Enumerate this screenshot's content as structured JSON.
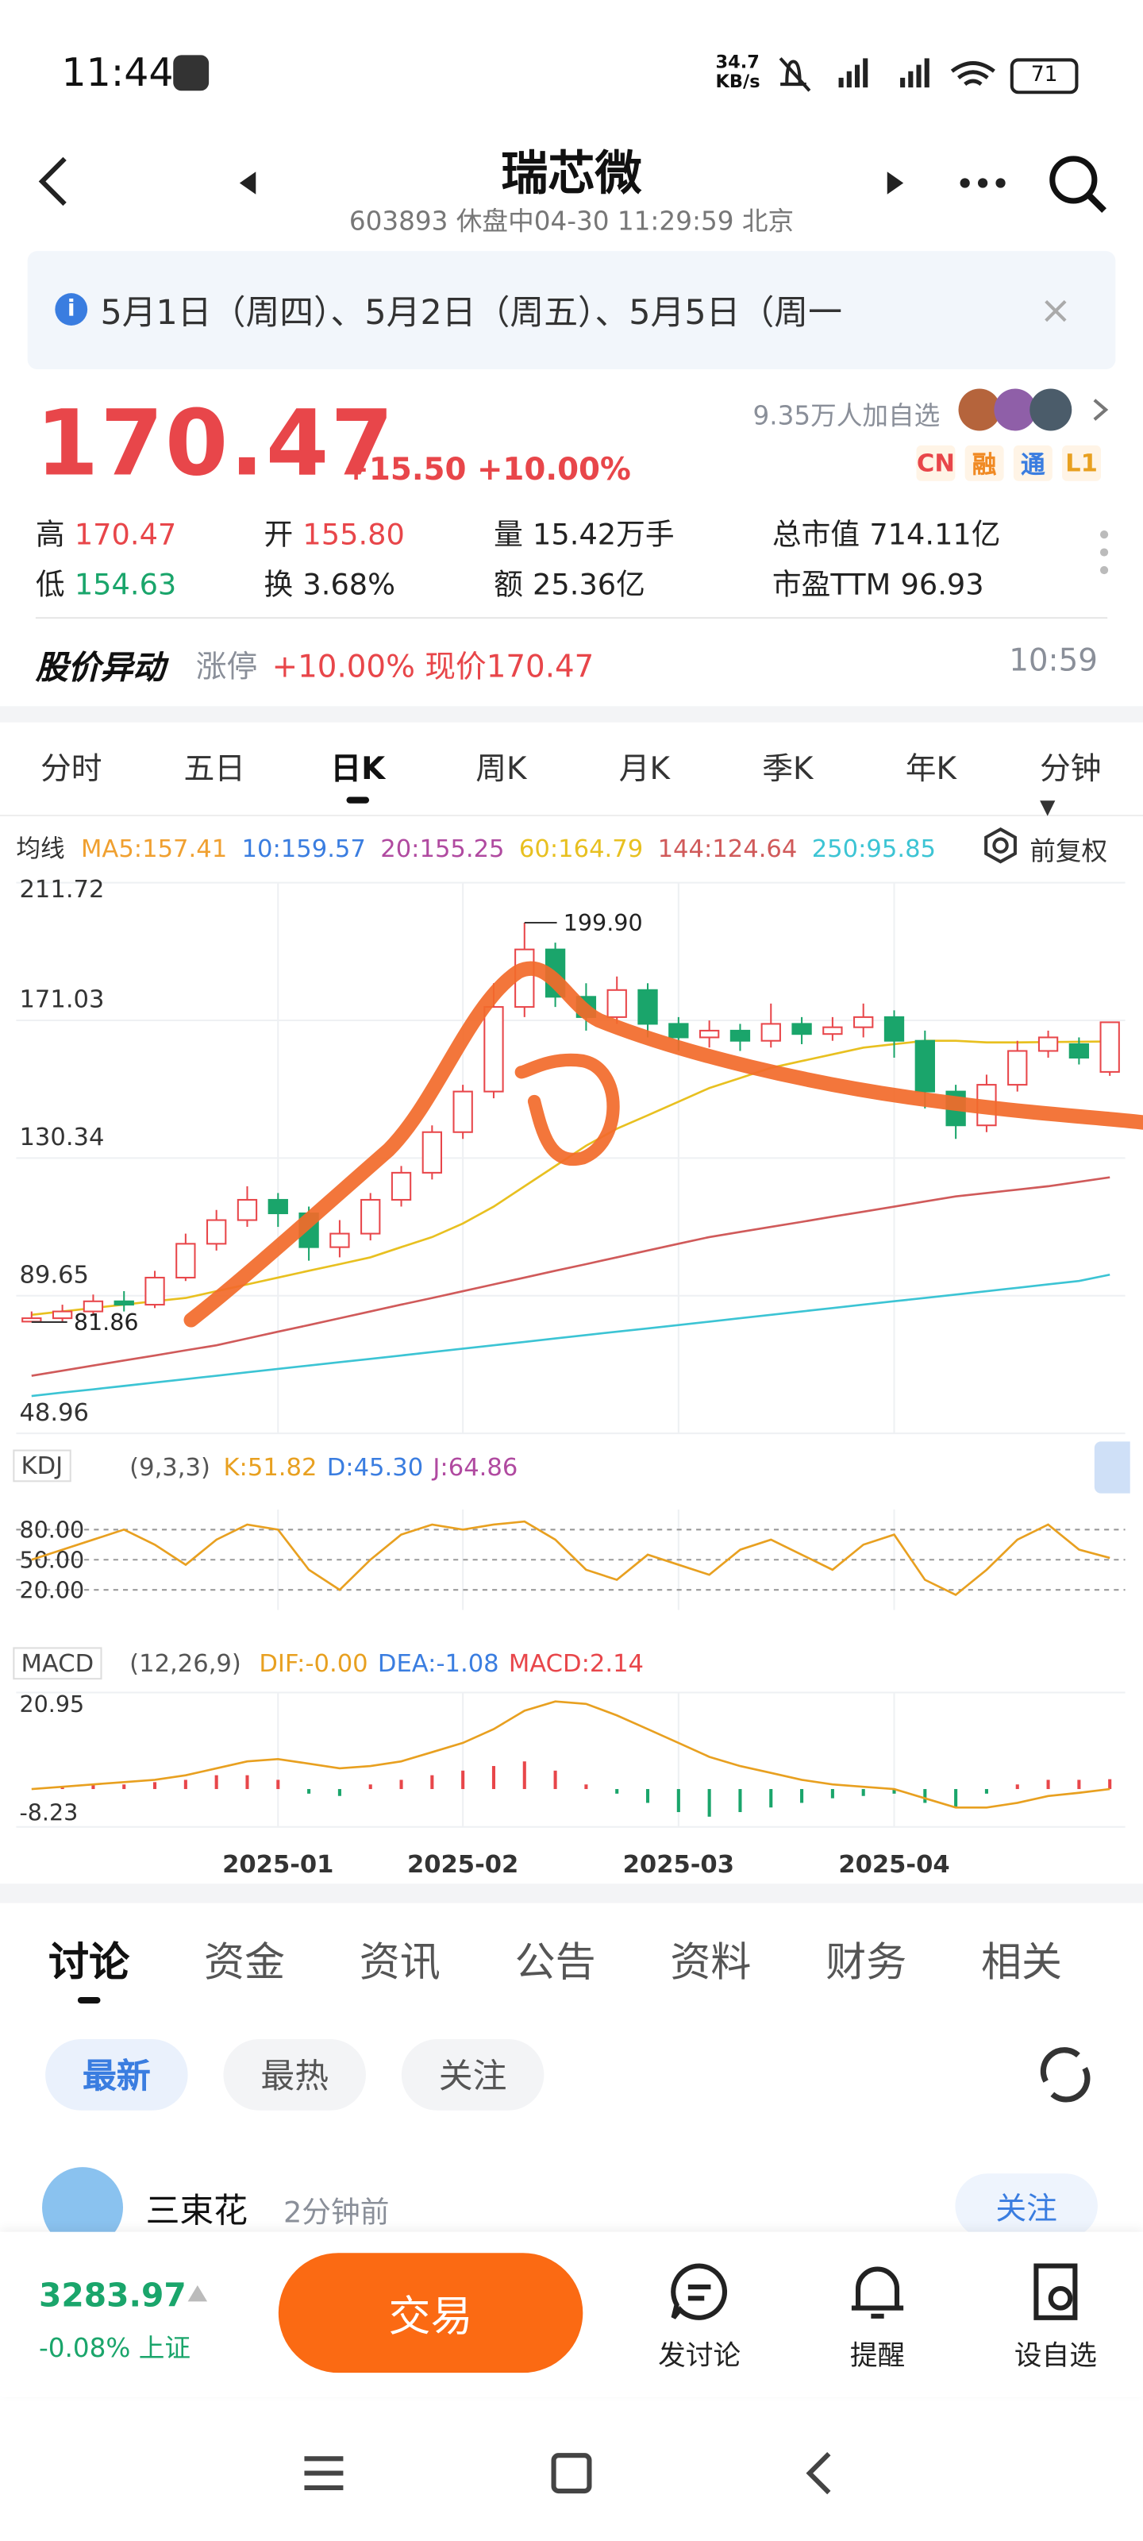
{
  "status_bar": {
    "time": "11:44",
    "net_speed": "34.7",
    "net_unit": "KB/s",
    "battery": "71"
  },
  "header": {
    "title": "瑞芯微",
    "subtitle": "603893 休盘中04-30 11:29:59 北京"
  },
  "notice": "5月1日（周四）、5月2日（周五）、5月5日（周一",
  "quote": {
    "price": "170.47",
    "change": "+15.50 +10.00%",
    "watchers": "9.35万人加自选",
    "badges": [
      {
        "text": "CN",
        "color": "#e8464a"
      },
      {
        "text": "融",
        "color": "#f08a24"
      },
      {
        "text": "通",
        "color": "#3a7de0"
      },
      {
        "text": "L1",
        "color": "#e8a020"
      }
    ],
    "stats": [
      {
        "label": "高",
        "value": "170.47",
        "color": "#e8464a"
      },
      {
        "label": "开",
        "value": "155.80",
        "color": "#e8464a"
      },
      {
        "label": "量",
        "value": "15.42万手",
        "color": "#222"
      },
      {
        "label": "总市值",
        "value": "714.11亿",
        "color": "#222"
      },
      {
        "label": "低",
        "value": "154.63",
        "color": "#1aa56b"
      },
      {
        "label": "换",
        "value": "3.68%",
        "color": "#222"
      },
      {
        "label": "额",
        "value": "25.36亿",
        "color": "#222"
      },
      {
        "label": "市盈TTM",
        "value": "96.93",
        "color": "#222"
      }
    ]
  },
  "alert": {
    "title": "股价异动",
    "tag": "涨停",
    "text": "+10.00% 现价170.47",
    "time": "10:59"
  },
  "chart_tabs": [
    "分时",
    "五日",
    "日K",
    "周K",
    "月K",
    "季K",
    "年K",
    "分钟▾"
  ],
  "active_chart_tab": 2,
  "ma_legend": {
    "title": "均线",
    "items": [
      {
        "label": "MA5:157.41",
        "color": "#f0a030"
      },
      {
        "label": "10:159.57",
        "color": "#3a7de0"
      },
      {
        "label": "20:155.25",
        "color": "#b04aa0"
      },
      {
        "label": "60:164.79",
        "color": "#e8c020"
      },
      {
        "label": "144:124.64",
        "color": "#d05a5a"
      },
      {
        "label": "250:95.85",
        "color": "#3cc4d4"
      }
    ],
    "adjust": "前复权"
  },
  "kdj_legend": {
    "name": "KDJ",
    "params": "(9,3,3)",
    "items": [
      {
        "label": "K:51.82",
        "color": "#e8a020"
      },
      {
        "label": "D:45.30",
        "color": "#3a7de0"
      },
      {
        "label": "J:64.86",
        "color": "#b04aa0"
      }
    ]
  },
  "macd_legend": {
    "name": "MACD",
    "params": "(12,26,9)",
    "items": [
      {
        "label": "DIF:-0.00",
        "color": "#e8a020"
      },
      {
        "label": "DEA:-1.08",
        "color": "#3a7de0"
      },
      {
        "label": "MACD:2.14",
        "color": "#e8464a"
      }
    ]
  },
  "chart_data": [
    {
      "type": "candlestick",
      "categories": [
        null,
        null,
        null,
        null,
        null,
        null,
        null,
        null,
        "2025-01",
        null,
        null,
        null,
        null,
        null,
        "2025-02",
        null,
        null,
        null,
        null,
        null,
        null,
        "2025-03",
        null,
        null,
        null,
        null,
        null,
        null,
        "2025-04",
        null,
        null,
        null,
        null,
        null,
        null,
        null
      ],
      "open": [
        82,
        83,
        85,
        88,
        87,
        95,
        105,
        112,
        118,
        114,
        104,
        108,
        118,
        126,
        138,
        150,
        175,
        192,
        178,
        172,
        180,
        170,
        166,
        168,
        165,
        170,
        167,
        169,
        172,
        165,
        150,
        140,
        152,
        162,
        164,
        155.8
      ],
      "close": [
        83,
        85,
        88,
        87,
        95,
        105,
        112,
        118,
        114,
        104,
        108,
        118,
        126,
        138,
        150,
        175,
        192,
        178,
        172,
        180,
        170,
        166,
        168,
        165,
        170,
        167,
        169,
        172,
        165,
        150,
        140,
        152,
        162,
        166,
        160,
        170.47
      ],
      "high": [
        85,
        87,
        90,
        91,
        97,
        108,
        115,
        122,
        120,
        116,
        112,
        120,
        128,
        140,
        152,
        182,
        199.9,
        194,
        182,
        184,
        182,
        172,
        171,
        170,
        176,
        172,
        172,
        176,
        174,
        168,
        152,
        155,
        165,
        168,
        166,
        170.47
      ],
      "low": [
        81.86,
        82,
        84,
        85,
        86,
        94,
        103,
        110,
        110,
        100,
        101,
        106,
        116,
        124,
        136,
        148,
        172,
        175,
        168,
        170,
        166,
        162,
        163,
        162,
        163,
        164,
        165,
        166,
        160,
        145,
        136,
        138,
        150,
        160,
        158,
        154.63
      ],
      "up_color": "#e8464a",
      "down_color": "#1aa56b",
      "extreme_labels": {
        "max": "199.90",
        "min": "81.86"
      },
      "lines": [
        {
          "color": "#e8c020",
          "values": [
            84,
            85,
            86,
            87,
            88,
            89,
            91,
            93,
            95,
            97,
            99,
            101,
            104,
            107,
            111,
            116,
            122,
            128,
            134,
            139,
            143,
            147,
            151,
            154,
            157,
            159,
            161,
            163,
            164,
            165,
            165,
            164.5,
            164.5,
            164.6,
            164.7,
            164.79
          ]
        },
        {
          "color": "#d05a5a",
          "values": [
            66,
            67.5,
            69,
            70.5,
            72,
            73.5,
            75,
            77,
            79,
            81,
            83,
            85,
            87,
            89,
            91,
            93,
            95,
            97,
            99,
            101,
            103,
            105,
            107,
            108.5,
            110,
            111.5,
            113,
            114.5,
            116,
            117.5,
            119,
            120,
            121,
            122,
            123.3,
            124.64
          ]
        },
        {
          "color": "#3cc4d4",
          "values": [
            60,
            61,
            62,
            63,
            64,
            65,
            66,
            67,
            68,
            69,
            70,
            71,
            72,
            73,
            74,
            75,
            76,
            77,
            78,
            79,
            80,
            81,
            82,
            83,
            84,
            85,
            86,
            87,
            88,
            89,
            90,
            91,
            92,
            93,
            94,
            95.85
          ]
        }
      ],
      "ylim": [
        48.96,
        211.72
      ],
      "yticks": [
        211.72,
        171.03,
        130.34,
        89.65,
        48.96
      ],
      "grid": true
    },
    {
      "type": "line",
      "ylim": [
        0,
        100
      ],
      "yticks": [
        {
          "value": 80,
          "label": "80.00"
        },
        {
          "value": 50,
          "label": "50.00"
        },
        {
          "value": 20,
          "label": "20.00"
        }
      ],
      "series": [
        {
          "color": "#e8a020",
          "values": [
            50,
            60,
            70,
            80,
            65,
            45,
            70,
            85,
            80,
            40,
            20,
            50,
            75,
            85,
            80,
            85,
            88,
            70,
            40,
            30,
            55,
            45,
            35,
            60,
            70,
            55,
            40,
            65,
            75,
            30,
            15,
            40,
            70,
            85,
            60,
            51.82
          ]
        }
      ]
    },
    {
      "type": "bar",
      "ylim": [
        -8.23,
        20.95
      ],
      "yticks": [
        20.95,
        -8.23
      ],
      "values": [
        0,
        0.5,
        1,
        1,
        1.5,
        2,
        3,
        3,
        2,
        -1,
        -1.5,
        1,
        2,
        3,
        4,
        5,
        6,
        4,
        1,
        -1,
        -3,
        -5,
        -6,
        -5,
        -4,
        -3,
        -2,
        -1.5,
        -1,
        -3,
        -4,
        -1,
        1,
        2,
        2,
        2.14
      ],
      "up_color": "#e8464a",
      "down_color": "#1aa56b",
      "series": [
        {
          "color": "#e8a020",
          "values": [
            0,
            0.5,
            1,
            1.5,
            2,
            3,
            4.5,
            6,
            6.5,
            5.5,
            4.5,
            5,
            6,
            8,
            10,
            13,
            17,
            19,
            18.5,
            16,
            13,
            10,
            7,
            5,
            3.5,
            2,
            1,
            0.5,
            0,
            -2,
            -4,
            -4,
            -3,
            -1.5,
            -0.8,
            0
          ]
        }
      ]
    }
  ],
  "content_tabs": [
    "讨论",
    "资金",
    "资讯",
    "公告",
    "资料",
    "财务",
    "相关"
  ],
  "chips": [
    "最新",
    "最热",
    "关注"
  ],
  "post": {
    "user": "三束花",
    "time": "2分钟前",
    "follow": "关注"
  },
  "bottom": {
    "index_value": "3283.97",
    "index_change": "-0.08% 上证",
    "trade": "交易",
    "actions": [
      "发讨论",
      "提醒",
      "设自选"
    ]
  }
}
